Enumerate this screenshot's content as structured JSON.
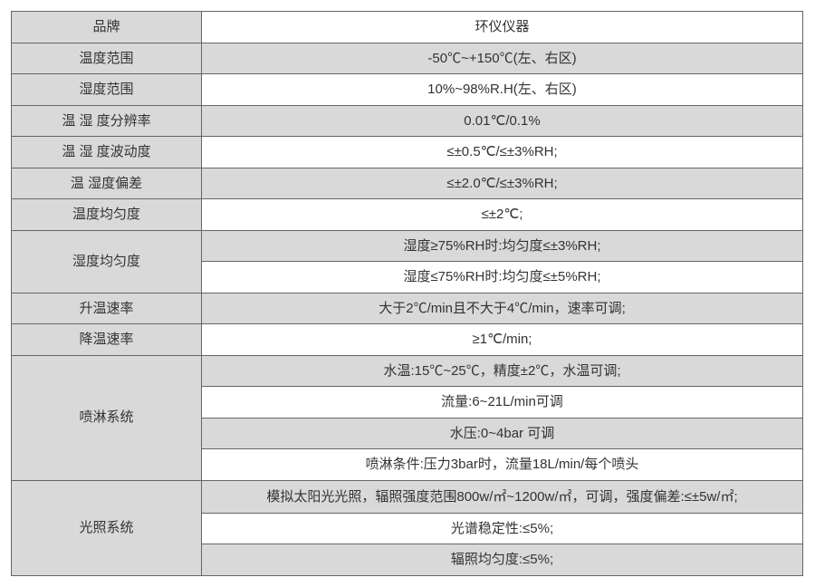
{
  "table": {
    "colors": {
      "shaded": "#d9d9d9",
      "plain": "#ffffff",
      "border": "#666666",
      "text": "#333333"
    },
    "fontsize": 15,
    "rows": [
      {
        "label": "品牌",
        "value": "环仪仪器",
        "value_bg": "plain"
      },
      {
        "label": "温度范围",
        "value": "-50℃~+150℃(左、右区)",
        "value_bg": "alt"
      },
      {
        "label": "湿度范围",
        "value": "10%~98%R.H(左、右区)",
        "value_bg": "plain"
      },
      {
        "label": "温 湿 度分辨率",
        "value": "0.01℃/0.1%",
        "value_bg": "alt"
      },
      {
        "label": "温 湿 度波动度",
        "value": "≤±0.5℃/≤±3%RH;",
        "value_bg": "plain"
      },
      {
        "label": "温 湿度偏差",
        "value": "≤±2.0℃/≤±3%RH;",
        "value_bg": "alt"
      },
      {
        "label": "温度均匀度",
        "value": "≤±2℃;",
        "value_bg": "plain"
      },
      {
        "label": "湿度均匀度",
        "values": [
          {
            "text": "湿度≥75%RH时:均匀度≤±3%RH;",
            "bg": "alt"
          },
          {
            "text": "湿度≤75%RH时:均匀度≤±5%RH;",
            "bg": "plain"
          }
        ]
      },
      {
        "label": "升温速率",
        "value": "大于2℃/min且不大于4℃/min，速率可调;",
        "value_bg": "alt"
      },
      {
        "label": "降温速率",
        "value": "≥1℃/min;",
        "value_bg": "plain"
      },
      {
        "label": "喷淋系统",
        "values": [
          {
            "text": "水温:15℃~25℃，精度±2℃，水温可调;",
            "bg": "alt"
          },
          {
            "text": "流量:6~21L/min可调",
            "bg": "plain"
          },
          {
            "text": "水压:0~4bar 可调",
            "bg": "alt"
          },
          {
            "text": "喷淋条件:压力3bar时，流量18L/min/每个喷头",
            "bg": "plain"
          }
        ]
      },
      {
        "label": "光照系统",
        "values": [
          {
            "text": "模拟太阳光光照，辐照强度范围800w/㎡~1200w/㎡，可调，强度偏差:≤±5w/㎡;",
            "bg": "alt",
            "wrap": true
          },
          {
            "text": "光谱稳定性:≤5%;",
            "bg": "plain"
          },
          {
            "text": "辐照均匀度:≤5%;",
            "bg": "alt"
          }
        ]
      }
    ]
  }
}
